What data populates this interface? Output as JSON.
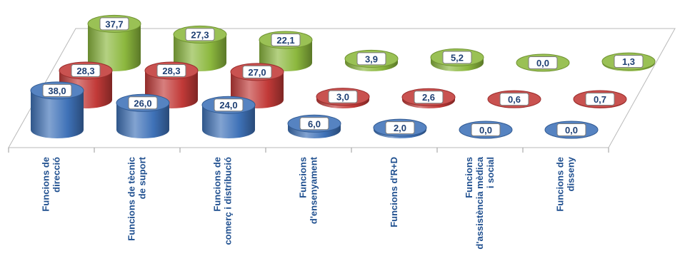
{
  "chart_data": {
    "type": "bar",
    "style": "3d-cylinder",
    "categories": [
      "Funcions de direcció",
      "Funcions de tècnic de suport",
      "Funcions de comerç i distribució",
      "Funcions d'ensenyament",
      "Funcions d'R+D",
      "Funcions d'assistència mèdica i social",
      "Funcions de disseny"
    ],
    "category_lines": [
      [
        "Funcions de",
        "direcció"
      ],
      [
        "Funcions de tècnic",
        "de suport"
      ],
      [
        "Funcions de",
        "comerç i distribució"
      ],
      [
        "Funcions",
        "d'ensenyament"
      ],
      [
        "Funcions d'R+D"
      ],
      [
        "Funcions",
        "d'assistència mèdica",
        "i social"
      ],
      [
        "Funcions de",
        "disseny"
      ]
    ],
    "series": [
      {
        "color": "#3f72b8",
        "values": [
          38.0,
          26.0,
          24.0,
          6.0,
          2.0,
          0.0,
          0.0
        ],
        "labels": [
          "38,0",
          "26,0",
          "24,0",
          "6,0",
          "2,0",
          "0,0",
          "0,0"
        ]
      },
      {
        "color": "#c23a38",
        "values": [
          28.3,
          28.3,
          27.0,
          3.0,
          2.6,
          0.6,
          0.7
        ],
        "labels": [
          "28,3",
          "28,3",
          "27,0",
          "3,0",
          "2,6",
          "0,6",
          "0,7"
        ]
      },
      {
        "color": "#8cb83e",
        "values": [
          37.7,
          27.3,
          22.1,
          3.9,
          5.2,
          0.0,
          1.3
        ],
        "labels": [
          "37,7",
          "27,3",
          "22,1",
          "3,9",
          "5,2",
          "0,0",
          "1,3"
        ]
      }
    ],
    "grid": false,
    "legend": "none"
  }
}
